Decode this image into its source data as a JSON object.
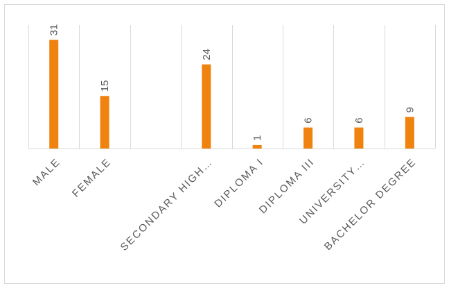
{
  "chart_data": {
    "type": "bar",
    "categories": [
      "MALE",
      "FEMALE",
      "",
      "SECONDARY HIGH…",
      "DIPLOMA I",
      "DIPLOMA III",
      "UNIVERSITY…",
      "BACHELOR DEGREE"
    ],
    "values": [
      31,
      15,
      null,
      24,
      1,
      6,
      6,
      9
    ],
    "data_labels": [
      "31",
      "15",
      "",
      "24",
      "1",
      "6",
      "6",
      "9"
    ],
    "title": "",
    "xlabel": "",
    "ylabel": "",
    "ylim": [
      0,
      33
    ],
    "grid": "vertical category gridlines",
    "legend": "none",
    "colors": {
      "bar": "#F0820F",
      "grid": "#d9d9d9",
      "text": "#595959"
    }
  }
}
